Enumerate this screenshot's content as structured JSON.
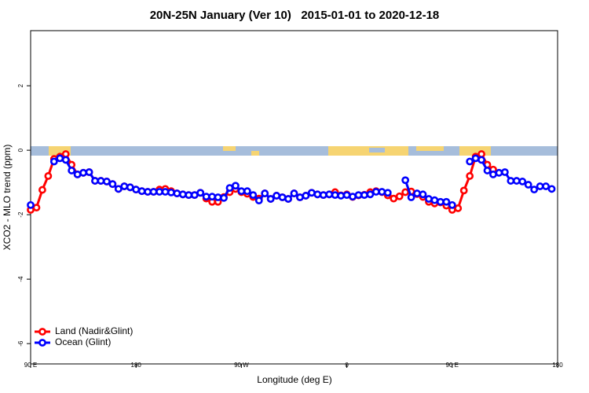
{
  "chart_data": {
    "type": "line",
    "title": "20N-25N January (Ver 10)   2015-01-01 to 2020-12-18",
    "xlabel": "Longitude (deg E)",
    "ylabel": "XCO2 - MLO trend (ppm)",
    "x": [
      90,
      95,
      100,
      105,
      110,
      115,
      120,
      125,
      130,
      135,
      140,
      145,
      150,
      155,
      160,
      165,
      170,
      175,
      180,
      185,
      190,
      195,
      200,
      205,
      210,
      215,
      220,
      225,
      230,
      235,
      240,
      245,
      250,
      255,
      260,
      265,
      270,
      275,
      280,
      285,
      290,
      295,
      300,
      305,
      310,
      315,
      320,
      325,
      330,
      335,
      340,
      345,
      350,
      355,
      360,
      365,
      370,
      375,
      380,
      385,
      390,
      395,
      400,
      405,
      410,
      415,
      420,
      425,
      430,
      435,
      440,
      445,
      450,
      455,
      460,
      465,
      470,
      475,
      480,
      485,
      490,
      495,
      500,
      505,
      510,
      515,
      520,
      525,
      530,
      535,
      540
    ],
    "series": [
      {
        "name": "Land (Nadir&Glint)",
        "color": "#ff0000",
        "values": [
          -1.85,
          -1.78,
          -1.23,
          -0.8,
          -0.27,
          -0.2,
          -0.12,
          -0.45,
          -0.75,
          -0.7,
          -0.68,
          -0.95,
          -0.95,
          -0.97,
          -1.05,
          -1.2,
          -1.12,
          -1.15,
          -1.22,
          -1.27,
          -1.29,
          -1.29,
          -1.22,
          -1.2,
          -1.27,
          -1.34,
          -1.37,
          -1.39,
          -1.39,
          -1.32,
          -1.5,
          -1.6,
          -1.6,
          -1.45,
          -1.3,
          -1.2,
          -1.3,
          -1.35,
          -1.45,
          -1.5,
          -1.34,
          -1.51,
          -1.41,
          -1.46,
          -1.51,
          -1.34,
          -1.46,
          -1.41,
          -1.32,
          -1.37,
          -1.39,
          -1.37,
          -1.3,
          -1.4,
          -1.37,
          -1.45,
          -1.4,
          -1.38,
          -1.3,
          -1.27,
          -1.3,
          -1.4,
          -1.5,
          -1.43,
          -1.3,
          -1.28,
          -1.36,
          -1.45,
          -1.6,
          -1.65,
          -1.62,
          -1.72,
          -1.85,
          -1.8,
          -1.25,
          -0.8,
          -0.2,
          -0.12,
          -0.45,
          -0.6,
          null,
          null,
          null,
          null,
          null,
          null,
          null,
          null,
          null,
          null,
          null
        ]
      },
      {
        "name": "Ocean (Glint)",
        "color": "#0000ff",
        "values": [
          -1.7,
          null,
          null,
          null,
          -0.35,
          -0.25,
          -0.3,
          -0.63,
          -0.75,
          -0.7,
          -0.68,
          -0.95,
          -0.95,
          -0.97,
          -1.05,
          -1.2,
          -1.12,
          -1.15,
          -1.22,
          -1.27,
          -1.29,
          -1.29,
          -1.29,
          -1.29,
          -1.31,
          -1.34,
          -1.37,
          -1.39,
          -1.39,
          -1.32,
          -1.44,
          -1.44,
          -1.46,
          -1.48,
          -1.17,
          -1.1,
          -1.27,
          -1.27,
          -1.39,
          -1.56,
          -1.34,
          -1.51,
          -1.41,
          -1.46,
          -1.51,
          -1.34,
          -1.46,
          -1.41,
          -1.32,
          -1.37,
          -1.39,
          -1.37,
          -1.39,
          -1.41,
          -1.39,
          -1.44,
          -1.39,
          -1.39,
          -1.37,
          -1.29,
          -1.29,
          -1.32,
          null,
          null,
          -0.93,
          -1.46,
          -1.34,
          -1.37,
          -1.51,
          -1.55,
          -1.6,
          -1.6,
          -1.7,
          null,
          null,
          -0.35,
          -0.25,
          -0.3,
          -0.63,
          -0.75,
          -0.7,
          -0.68,
          -0.95,
          -0.95,
          -0.97,
          -1.07,
          -1.22,
          -1.12,
          -1.12,
          -1.2,
          null
        ]
      }
    ],
    "xlim": [
      90,
      540
    ],
    "xticks": [
      {
        "value": 90,
        "label": "90 E"
      },
      180,
      {
        "value": 270,
        "label": "90 W"
      },
      {
        "value": 360,
        "label": "0"
      },
      {
        "value": 450,
        "label": "90 E"
      },
      {
        "value": 540,
        "label": "180"
      }
    ],
    "ylim": [
      -6.63,
      3.71
    ],
    "yticks": [
      2,
      0,
      -2,
      -4,
      -6
    ],
    "legend": "lower left"
  }
}
